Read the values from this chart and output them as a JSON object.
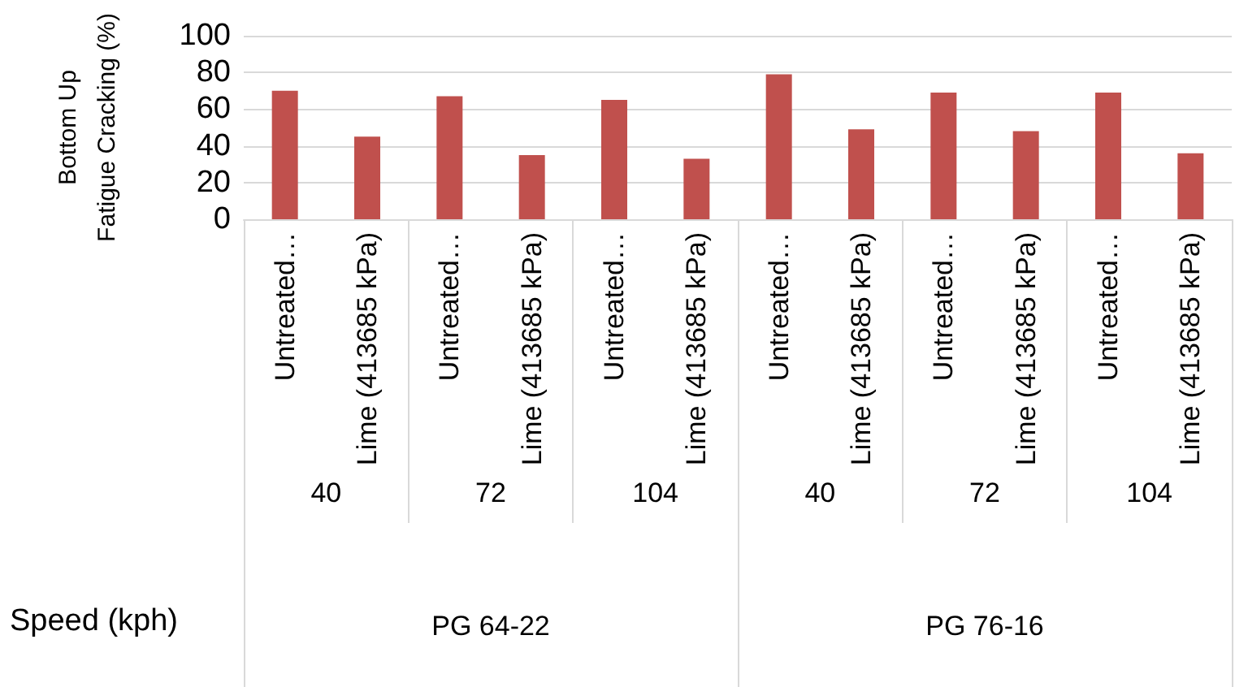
{
  "chart_data": {
    "type": "bar",
    "ylabel": "Bottom Up\nFatigue Cracking (%)",
    "xlabel": "Speed (kph)",
    "categories": [
      "Untreated…",
      "Lime (413685 kPa)",
      "Untreated…",
      "Lime (413685 kPa)",
      "Untreated…",
      "Lime (413685 kPa)",
      "Untreated…",
      "Lime (413685 kPa)",
      "Untreated…",
      "Lime (413685 kPa)",
      "Untreated…",
      "Lime (413685 kPa)"
    ],
    "values": [
      70,
      45,
      67,
      35,
      65,
      33,
      79,
      49,
      69,
      48,
      69,
      36
    ],
    "color": "#c0504d",
    "ylim": [
      0,
      100
    ],
    "yticks": [
      0,
      20,
      40,
      60,
      80,
      100
    ],
    "grid": "y",
    "annotations": [
      "40",
      "72",
      "104",
      "40",
      "72",
      "104",
      "PG 64-22",
      "PG 76-16"
    ]
  }
}
